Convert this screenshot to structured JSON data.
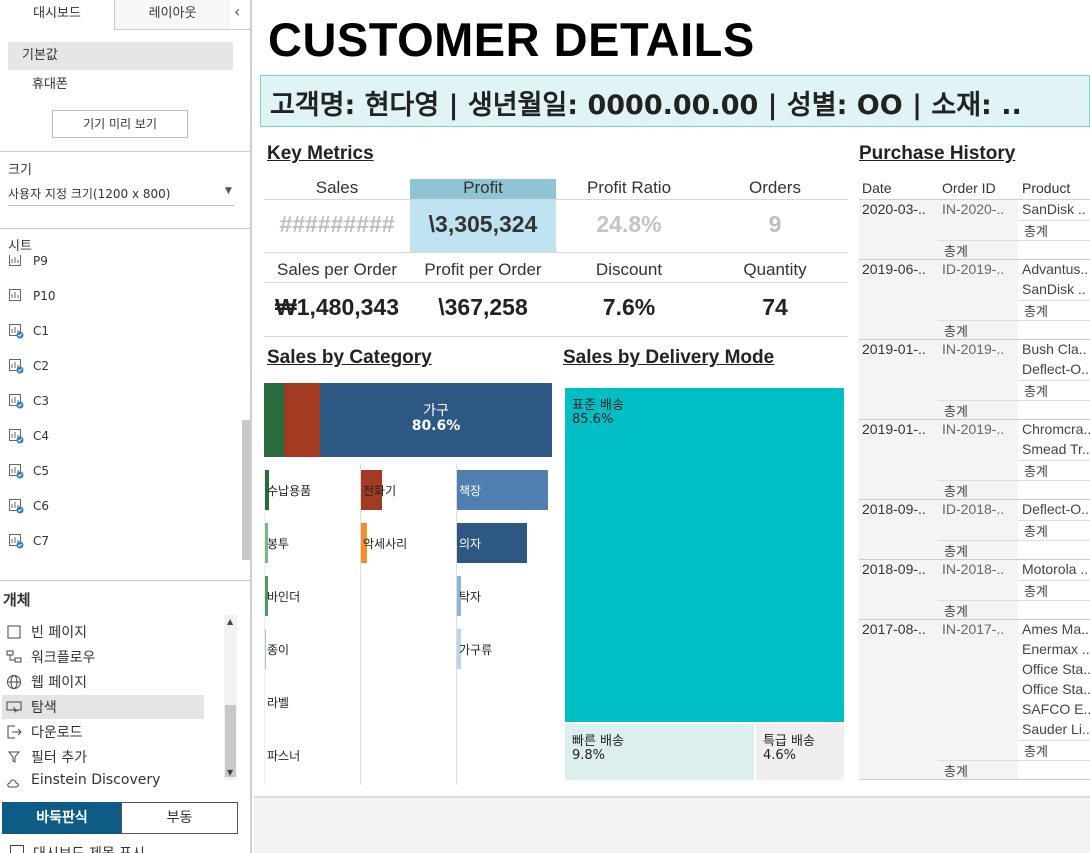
{
  "sidebar": {
    "tabs": [
      "대시보드",
      "레이아웃"
    ],
    "devices": [
      "기본값",
      "휴대폰"
    ],
    "preview_button": "기기 미리 보기",
    "size_label": "크기",
    "size_value": "사용자 지정 크기(1200 x 800)",
    "sheets_label": "시트",
    "sheets": [
      "P9",
      "P10",
      "C1",
      "C2",
      "C3",
      "C4",
      "C5",
      "C6",
      "C7"
    ],
    "objects_label": "개체",
    "objects": [
      "빈 페이지",
      "워크플로우",
      "웹 페이지",
      "탐색",
      "다운로드",
      "필터 추가",
      "Einstein Discovery"
    ],
    "layout_modes": [
      "바둑판식",
      "부동"
    ],
    "show_title": "대시보드 제목 표시"
  },
  "dashboard": {
    "title": "CUSTOMER DETAILS",
    "customer_info": "고객명: 현다영 | 생년월일: 0000.00.00 | 성별: OO | 소재: ..",
    "key_metrics": {
      "title": "Key Metrics",
      "metrics": [
        {
          "label": "Sales",
          "value": "#########"
        },
        {
          "label": "Profit",
          "value": "\\3,305,324"
        },
        {
          "label": "Profit Ratio",
          "value": "24.8%"
        },
        {
          "label": "Orders",
          "value": "9"
        },
        {
          "label": "Sales per Order",
          "value": "₩1,480,343"
        },
        {
          "label": "Profit per Order",
          "value": "\\367,258"
        },
        {
          "label": "Discount",
          "value": "7.6%"
        },
        {
          "label": "Quantity",
          "value": "74"
        }
      ]
    },
    "sales_by_category": {
      "title": "Sales by Category",
      "top_label": "가구",
      "top_value": "80.6%",
      "columns": [
        [
          "수납용품",
          "봉투",
          "바인더",
          "종이",
          "라벨",
          "파스너"
        ],
        [
          "전화기",
          "악세사리"
        ],
        [
          "책장",
          "의자",
          "탁자",
          "가구류"
        ]
      ]
    },
    "sales_by_delivery": {
      "title": "Sales by Delivery Mode",
      "segments": [
        {
          "label": "표준 배송",
          "value": "85.6%"
        },
        {
          "label": "빠른 배송",
          "value": "9.8%"
        },
        {
          "label": "특급 배송",
          "value": "4.6%"
        }
      ]
    },
    "purchase_history": {
      "title": "Purchase History",
      "columns": [
        "Date",
        "Order ID",
        "Product"
      ],
      "total_label": "총계",
      "orders": [
        {
          "date": "2020-03-..",
          "order_id": "IN-2020-..",
          "products": [
            "SanDisk .."
          ]
        },
        {
          "date": "2019-06-..",
          "order_id": "ID-2019-..",
          "products": [
            "Advantus..",
            "SanDisk .."
          ]
        },
        {
          "date": "2019-01-..",
          "order_id": "IN-2019-..",
          "products": [
            "Bush Cla..",
            "Deflect-O.."
          ]
        },
        {
          "date": "2019-01-..",
          "order_id": "IN-2019-..",
          "products": [
            "Chromcra..",
            "Smead Tr.."
          ]
        },
        {
          "date": "2018-09-..",
          "order_id": "ID-2018-..",
          "products": [
            "Deflect-O.."
          ]
        },
        {
          "date": "2018-09-..",
          "order_id": "IN-2018-..",
          "products": [
            "Motorola .."
          ]
        },
        {
          "date": "2017-08-..",
          "order_id": "IN-2017-..",
          "products": [
            "Ames Ma..",
            "Enermax ..",
            "Office Sta..",
            "Office Sta..",
            "SAFCO E..",
            "Sauder Li.."
          ]
        }
      ]
    }
  }
}
